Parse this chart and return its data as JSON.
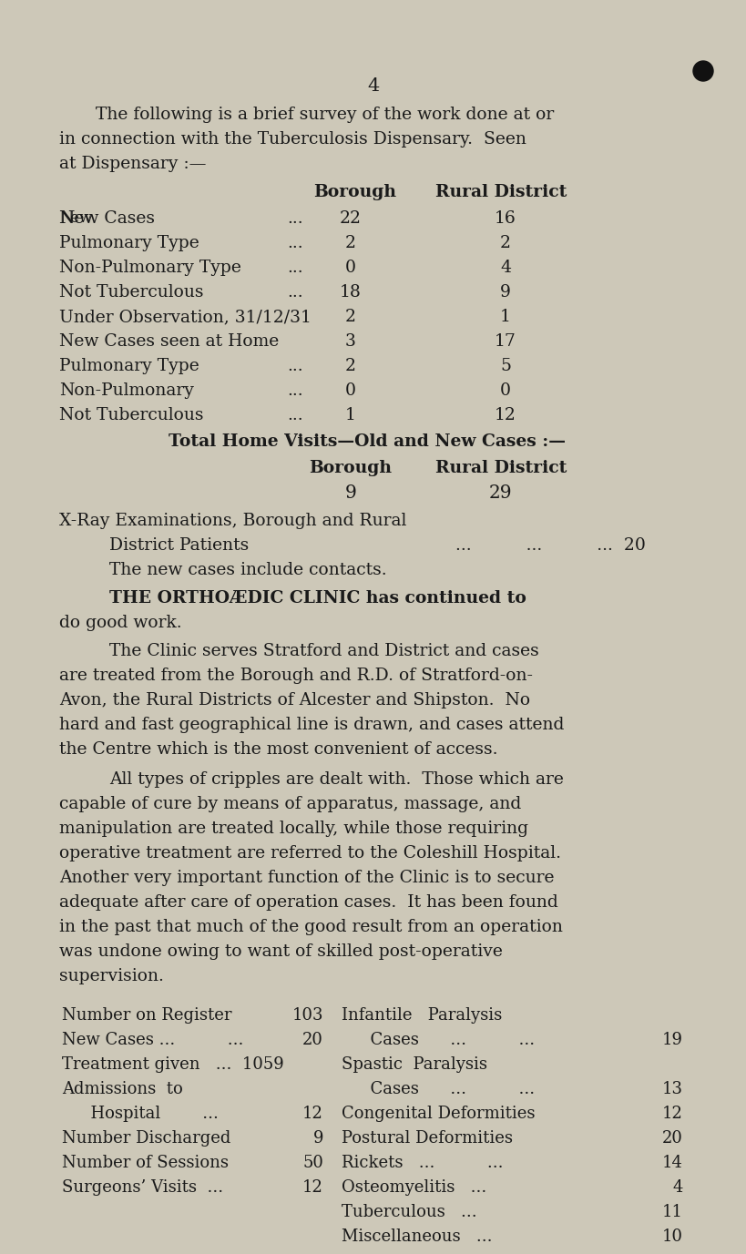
{
  "bg_color": "#cdc8b8",
  "text_color": "#1a1a1a",
  "page_number": "4",
  "intro_lines": [
    "The following is a brief survey of the work done at or",
    "in connection with the Tuberculosis Dispensary.  Seen",
    "at Dispensary :—"
  ],
  "dispensary_rows": [
    {
      "label": "New Cases",
      "dots": "...",
      "borough": "22",
      "rural": "16",
      "label_style": "smallcaps"
    },
    {
      "label": "Pulmonary Type",
      "dots": "...",
      "borough": "2",
      "rural": "2",
      "label_style": "normal"
    },
    {
      "label": "Non-Pulmonary Type",
      "dots": "...",
      "borough": "0",
      "rural": "4",
      "label_style": "normal"
    },
    {
      "label": "Not Tuberculous",
      "dots": "...",
      "borough": "18",
      "rural": "9",
      "label_style": "normal"
    },
    {
      "label": "Under Observation, 31/12/31",
      "dots": "",
      "borough": "2",
      "rural": "1",
      "label_style": "normal"
    },
    {
      "label": "New Cases seen at Home",
      "dots": "",
      "borough": "3",
      "rural": "17",
      "label_style": "normal"
    },
    {
      "label": "Pulmonary Type",
      "dots": "...",
      "borough": "2",
      "rural": "5",
      "label_style": "normal"
    },
    {
      "label": "Non-Pulmonary",
      "dots": "...",
      "borough": "0",
      "rural": "0",
      "label_style": "normal"
    },
    {
      "label": "Not Tuberculous",
      "dots": "...",
      "borough": "1",
      "rural": "12",
      "label_style": "normal"
    }
  ],
  "total_home_label": "Total Home Visits—Old and New Cases :—",
  "total_home_borough": "9",
  "total_home_rural": "29",
  "xray_lines": [
    "X-Ray Examinations, Borough and Rural",
    "District Patients          ...          ...          ...  20",
    "The new cases include contacts."
  ],
  "ortho_line1a": "THE ORTHOÆDIC CLINIC has continued to",
  "ortho_line1b": "do good work.",
  "para2_lines": [
    "The Clinic serves Stratford and District and cases",
    "are treated from the Borough and R.D. of Stratford-on-",
    "Avon, the Rural Districts of Alcester and Shipston.  No",
    "hard and fast geographical line is drawn, and cases attend",
    "the Centre which is the most convenient of access."
  ],
  "para3_lines": [
    "All types of cripples are dealt with.  Those which are",
    "capable of cure by means of apparatus, massage, and",
    "manipulation are treated locally, while those requiring",
    "operative treatment are referred to the Coleshill Hospital.",
    "Another very important function of the Clinic is to secure",
    "adequate after care of operation cases.  It has been found",
    "in the past that much of the good result from an operation",
    "was undone owing to want of skilled post-operative",
    "supervision."
  ],
  "left_stats": [
    [
      "Number on Register",
      "103",
      false
    ],
    [
      "New Cases ...          ...",
      "20",
      false
    ],
    [
      "Treatment given   ...  1059",
      "",
      false
    ],
    [
      "Admissions  to",
      "",
      false
    ],
    [
      "  Hospital        ...",
      "12",
      true
    ],
    [
      "Number Discharged",
      "9",
      false
    ],
    [
      "Number of Sessions",
      "50",
      false
    ],
    [
      "Surgeons’ Visits  ...",
      "12",
      false
    ]
  ],
  "right_stats": [
    [
      "Infantile   Paralysis",
      "",
      false
    ],
    [
      "  Cases      ...          ...",
      "19",
      true
    ],
    [
      "Spastic  Paralysis",
      "",
      false
    ],
    [
      "  Cases      ...          ...",
      "13",
      true
    ],
    [
      "Congenital Deformities",
      "12",
      false
    ],
    [
      "Postural Deformities",
      "20",
      false
    ],
    [
      "Rickets   ...          ...",
      "14",
      false
    ],
    [
      "Osteomyelitis   ...",
      "4",
      false
    ],
    [
      "Tuberculous   ...",
      "11",
      false
    ],
    [
      "Miscellaneous   ...",
      "10",
      false
    ]
  ]
}
